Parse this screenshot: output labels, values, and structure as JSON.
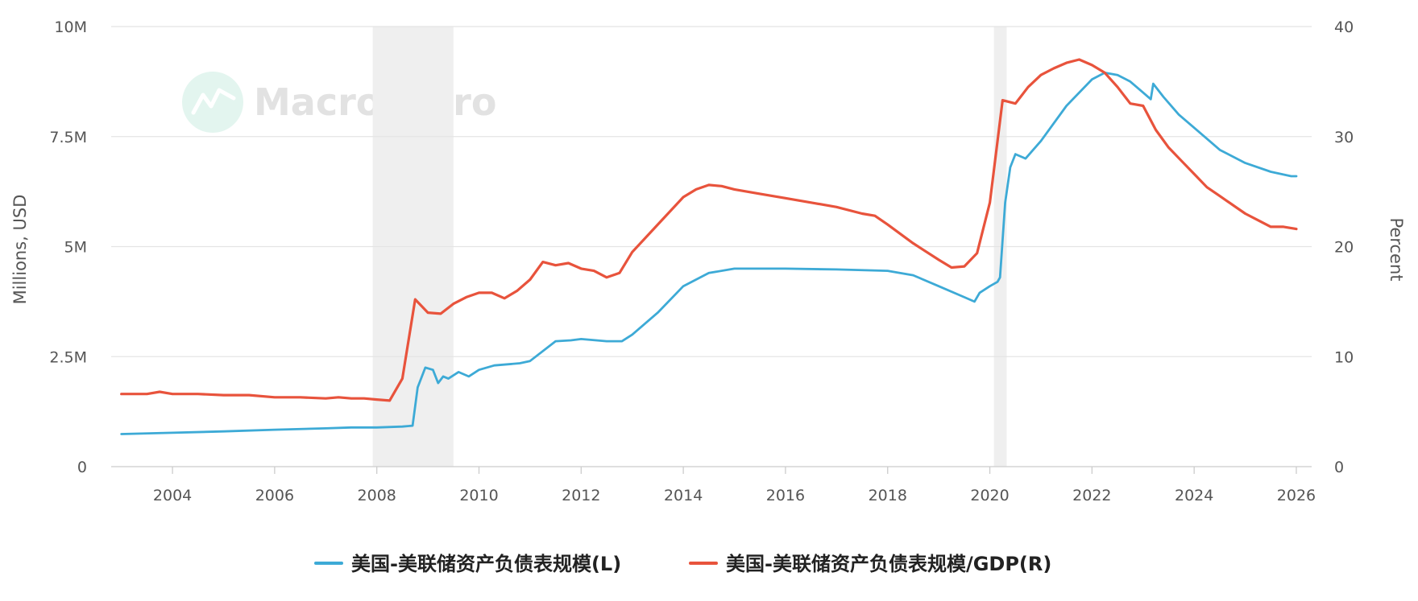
{
  "watermark": {
    "text": "MacroMicro"
  },
  "chart_data": {
    "type": "line",
    "x_range": [
      2002.8,
      2026.3
    ],
    "x_ticks": [
      {
        "value": 2004,
        "label": "2004"
      },
      {
        "value": 2006,
        "label": "2006"
      },
      {
        "value": 2008,
        "label": "2008"
      },
      {
        "value": 2010,
        "label": "2010"
      },
      {
        "value": 2012,
        "label": "2012"
      },
      {
        "value": 2014,
        "label": "2014"
      },
      {
        "value": 2016,
        "label": "2016"
      },
      {
        "value": 2018,
        "label": "2018"
      },
      {
        "value": 2020,
        "label": "2020"
      },
      {
        "value": 2022,
        "label": "2022"
      },
      {
        "value": 2024,
        "label": "2024"
      },
      {
        "value": 2026,
        "label": "2026"
      }
    ],
    "y_left": {
      "label": "Millions, USD",
      "range": [
        0,
        10000000
      ],
      "ticks": [
        {
          "value": 0,
          "label": "0"
        },
        {
          "value": 2500000,
          "label": "2.5M"
        },
        {
          "value": 5000000,
          "label": "5M"
        },
        {
          "value": 7500000,
          "label": "7.5M"
        },
        {
          "value": 10000000,
          "label": "10M"
        }
      ]
    },
    "y_right": {
      "label": "Percent",
      "range": [
        0,
        40
      ],
      "ticks": [
        {
          "value": 0,
          "label": "0"
        },
        {
          "value": 10,
          "label": "10"
        },
        {
          "value": 20,
          "label": "20"
        },
        {
          "value": 30,
          "label": "30"
        },
        {
          "value": 40,
          "label": "40"
        }
      ]
    },
    "shaded_periods": [
      {
        "start": 2007.92,
        "end": 2009.5
      },
      {
        "start": 2020.08,
        "end": 2020.33
      }
    ],
    "grid": true,
    "legend_position": "bottom",
    "series": [
      {
        "name": "美国-美联储资产负债表规模(L)",
        "axis": "left",
        "color": "#3daad6",
        "x": [
          2003.0,
          2004.0,
          2005.0,
          2006.0,
          2007.0,
          2007.5,
          2008.0,
          2008.5,
          2008.7,
          2008.8,
          2008.95,
          2009.1,
          2009.2,
          2009.3,
          2009.4,
          2009.6,
          2009.8,
          2010.0,
          2010.3,
          2010.8,
          2011.0,
          2011.5,
          2011.8,
          2012.0,
          2012.5,
          2012.8,
          2013.0,
          2013.5,
          2014.0,
          2014.5,
          2015.0,
          2016.0,
          2017.0,
          2018.0,
          2018.5,
          2019.0,
          2019.5,
          2019.7,
          2019.8,
          2020.0,
          2020.15,
          2020.2,
          2020.3,
          2020.4,
          2020.5,
          2020.7,
          2021.0,
          2021.5,
          2022.0,
          2022.25,
          2022.5,
          2022.75,
          2023.0,
          2023.15,
          2023.2,
          2023.4,
          2023.7,
          2024.0,
          2024.3,
          2024.5,
          2025.0,
          2025.5,
          2025.9,
          2026.0
        ],
        "y": [
          740000,
          770000,
          800000,
          840000,
          870000,
          890000,
          890000,
          910000,
          930000,
          1800000,
          2250000,
          2200000,
          1900000,
          2050000,
          2000000,
          2150000,
          2050000,
          2200000,
          2300000,
          2350000,
          2400000,
          2850000,
          2870000,
          2900000,
          2850000,
          2850000,
          3000000,
          3500000,
          4100000,
          4400000,
          4500000,
          4500000,
          4480000,
          4450000,
          4350000,
          4100000,
          3850000,
          3750000,
          3950000,
          4100000,
          4200000,
          4300000,
          6000000,
          6800000,
          7100000,
          7000000,
          7400000,
          8200000,
          8800000,
          8950000,
          8900000,
          8750000,
          8500000,
          8350000,
          8700000,
          8400000,
          8000000,
          7700000,
          7400000,
          7200000,
          6900000,
          6700000,
          6600000,
          6600000
        ]
      },
      {
        "name": "美国-美联储资产负债表规模/GDP(R)",
        "axis": "right",
        "color": "#e8533c",
        "x": [
          2003.0,
          2003.5,
          2003.75,
          2004.0,
          2004.5,
          2005.0,
          2005.5,
          2006.0,
          2006.5,
          2007.0,
          2007.25,
          2007.5,
          2007.75,
          2008.0,
          2008.25,
          2008.5,
          2008.75,
          2009.0,
          2009.25,
          2009.5,
          2009.75,
          2010.0,
          2010.25,
          2010.5,
          2010.75,
          2011.0,
          2011.25,
          2011.5,
          2011.75,
          2012.0,
          2012.25,
          2012.5,
          2012.75,
          2013.0,
          2013.5,
          2014.0,
          2014.25,
          2014.5,
          2014.75,
          2015.0,
          2015.5,
          2016.0,
          2016.5,
          2017.0,
          2017.5,
          2017.75,
          2018.0,
          2018.5,
          2019.0,
          2019.25,
          2019.5,
          2019.75,
          2020.0,
          2020.25,
          2020.5,
          2020.75,
          2021.0,
          2021.25,
          2021.5,
          2021.75,
          2022.0,
          2022.25,
          2022.5,
          2022.75,
          2023.0,
          2023.25,
          2023.5,
          2023.75,
          2024.0,
          2024.25,
          2024.5,
          2024.75,
          2025.0,
          2025.25,
          2025.5,
          2025.75,
          2026.0
        ],
        "y": [
          6.6,
          6.6,
          6.8,
          6.6,
          6.6,
          6.5,
          6.5,
          6.3,
          6.3,
          6.2,
          6.3,
          6.2,
          6.2,
          6.1,
          6.0,
          8.0,
          15.2,
          14.0,
          13.9,
          14.8,
          15.4,
          15.8,
          15.8,
          15.3,
          16.0,
          17.0,
          18.6,
          18.3,
          18.5,
          18.0,
          17.8,
          17.2,
          17.6,
          19.5,
          22.0,
          24.5,
          25.2,
          25.6,
          25.5,
          25.2,
          24.8,
          24.4,
          24.0,
          23.6,
          23.0,
          22.8,
          22.0,
          20.3,
          18.8,
          18.1,
          18.2,
          19.4,
          24.0,
          33.3,
          33.0,
          34.5,
          35.6,
          36.2,
          36.7,
          37.0,
          36.5,
          35.8,
          34.5,
          33.0,
          32.8,
          30.6,
          29.0,
          27.8,
          26.6,
          25.4,
          24.6,
          23.8,
          23.0,
          22.4,
          21.8,
          21.8,
          21.6
        ]
      }
    ]
  }
}
